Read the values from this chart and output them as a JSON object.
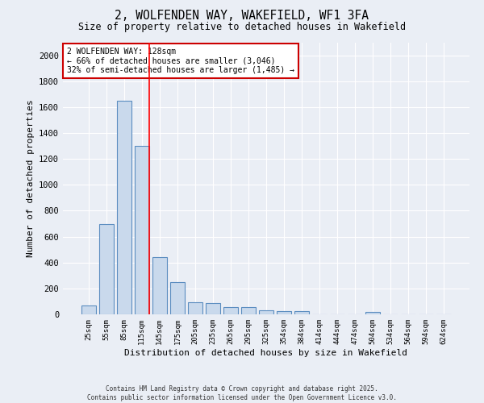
{
  "title_line1": "2, WOLFENDEN WAY, WAKEFIELD, WF1 3FA",
  "title_line2": "Size of property relative to detached houses in Wakefield",
  "xlabel": "Distribution of detached houses by size in Wakefield",
  "ylabel": "Number of detached properties",
  "categories": [
    "25sqm",
    "55sqm",
    "85sqm",
    "115sqm",
    "145sqm",
    "175sqm",
    "205sqm",
    "235sqm",
    "265sqm",
    "295sqm",
    "325sqm",
    "354sqm",
    "384sqm",
    "414sqm",
    "444sqm",
    "474sqm",
    "504sqm",
    "534sqm",
    "564sqm",
    "594sqm",
    "624sqm"
  ],
  "values": [
    70,
    700,
    1650,
    1300,
    440,
    250,
    95,
    90,
    55,
    55,
    30,
    25,
    25,
    0,
    0,
    0,
    20,
    0,
    0,
    0,
    0
  ],
  "bar_color": "#c9d9ec",
  "bar_edge_color": "#5b8dc0",
  "bar_width": 0.8,
  "ylim": [
    0,
    2100
  ],
  "yticks": [
    0,
    200,
    400,
    600,
    800,
    1000,
    1200,
    1400,
    1600,
    1800,
    2000
  ],
  "red_line_x": 3.43,
  "annotation_text": "2 WOLFENDEN WAY: 128sqm\n← 66% of detached houses are smaller (3,046)\n32% of semi-detached houses are larger (1,485) →",
  "annotation_box_color": "#ffffff",
  "annotation_box_edge_color": "#cc0000",
  "background_color": "#eaeef5",
  "grid_color": "#ffffff",
  "footer_line1": "Contains HM Land Registry data © Crown copyright and database right 2025.",
  "footer_line2": "Contains public sector information licensed under the Open Government Licence v3.0."
}
